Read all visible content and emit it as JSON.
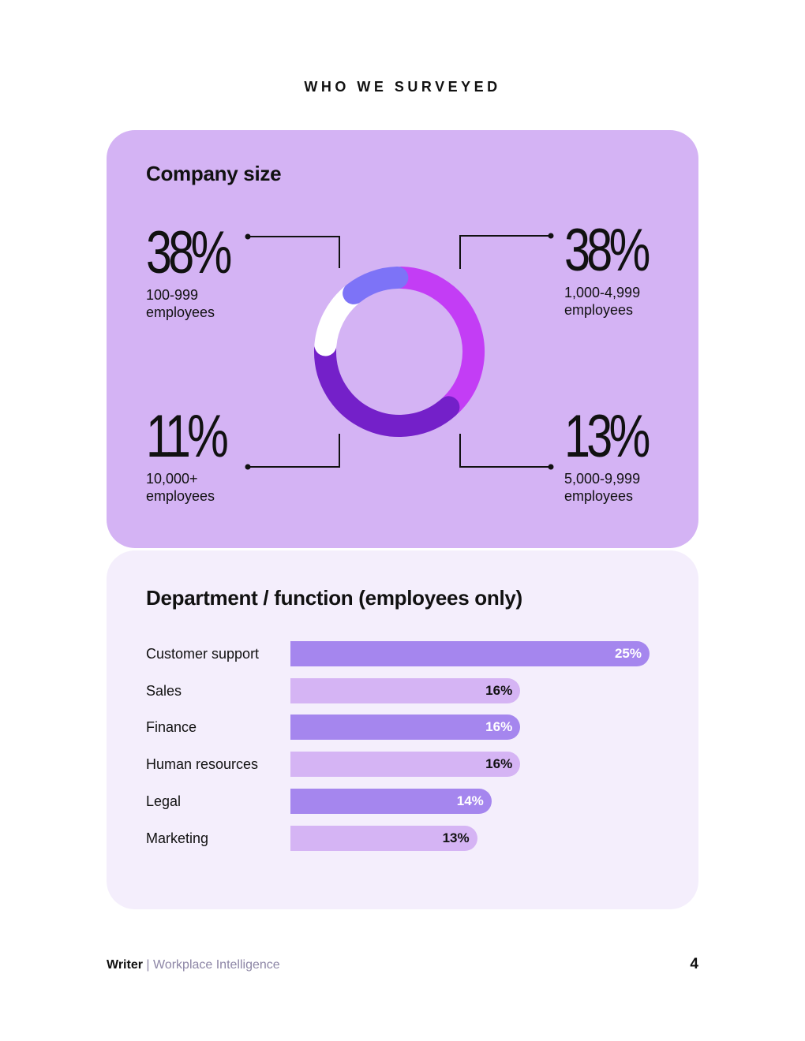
{
  "page": {
    "heading": "WHO WE SURVEYED",
    "footer": {
      "brand": "Writer",
      "separator": "|",
      "subtitle": "Workplace Intelligence"
    },
    "page_number": "4"
  },
  "colors": {
    "card_top": "#d4b3f4",
    "card_bottom": "#f4eefc",
    "donut_100_999": "#c33df5",
    "donut_1000_4999": "#7420c9",
    "donut_5000_9999": "#ffffff",
    "donut_10000_plus": "#7d73f7",
    "bar_dark": "#a586ee",
    "bar_light": "#d5b4f4"
  },
  "chart_data": [
    {
      "type": "pie",
      "title": "Company size",
      "slices": [
        {
          "value": "38%",
          "percent": 38,
          "label_line1": "100-999",
          "label_line2": "employees",
          "color": "#c33df5"
        },
        {
          "value": "38%",
          "percent": 38,
          "label_line1": "1,000-4,999",
          "label_line2": "employees",
          "color": "#7420c9"
        },
        {
          "value": "13%",
          "percent": 13,
          "label_line1": "5,000-9,999",
          "label_line2": "employees",
          "color": "#ffffff"
        },
        {
          "value": "11%",
          "percent": 11,
          "label_line1": "10,000+",
          "label_line2": "employees",
          "color": "#7d73f7"
        }
      ]
    },
    {
      "type": "bar",
      "orientation": "horizontal",
      "title": "Department / function (employees only)",
      "categories": [
        "Customer support",
        "Sales",
        "Finance",
        "Human resources",
        "Legal",
        "Marketing"
      ],
      "values": [
        25,
        16,
        16,
        16,
        14,
        13
      ],
      "value_labels": [
        "25%",
        "16%",
        "16%",
        "16%",
        "14%",
        "13%"
      ]
    }
  ]
}
